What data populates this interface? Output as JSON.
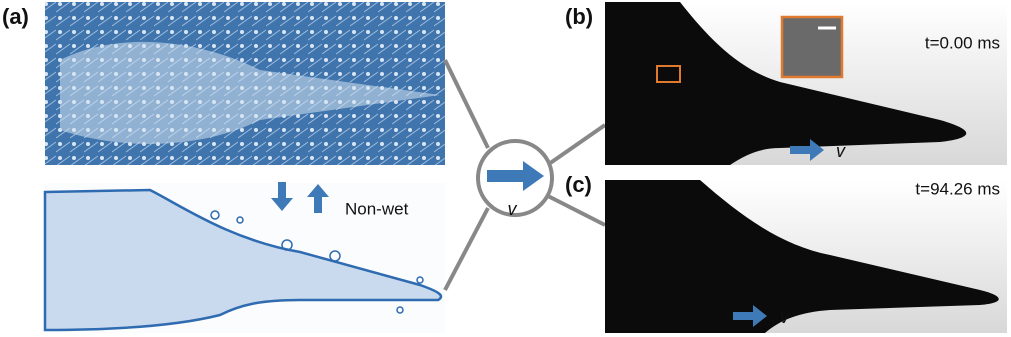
{
  "panels": {
    "a": {
      "label": "(a)",
      "caption": "Non-wet"
    },
    "center": {
      "velocity": "v"
    },
    "b": {
      "label": "(b)",
      "time": "t=0.00 ms",
      "velocity": "v"
    },
    "c": {
      "label": "(c)",
      "time": "t=94.26 ms",
      "velocity": "v"
    }
  }
}
